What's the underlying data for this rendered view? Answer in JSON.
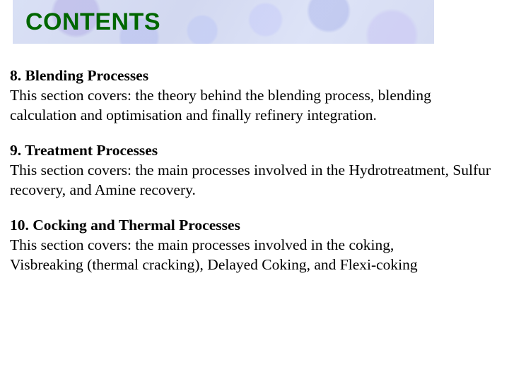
{
  "title": {
    "text": "CONTENTS",
    "font_family": "Arial",
    "font_size_pt": 26,
    "font_weight": 700,
    "color": "#006600",
    "band_background_colors": [
      "#d9e0f5",
      "#d2d8f0",
      "#dde3f7",
      "#d6dcf2"
    ]
  },
  "body": {
    "font_family": "Times New Roman",
    "font_size_pt": 16,
    "color": "#000000"
  },
  "sections": [
    {
      "heading": "8. Blending Processes",
      "description": "This section covers: the theory behind the blending process, blending calculation and optimisation and finally refinery integration."
    },
    {
      "heading": "9. Treatment Processes",
      "description": "This section covers: the main processes involved in the Hydrotreatment, Sulfur recovery, and Amine recovery."
    },
    {
      "heading": "10. Cocking  and Thermal Processes",
      "description": "This section covers: the main processes involved in the coking,\n Visbreaking (thermal cracking), Delayed Coking,  and Flexi-coking"
    }
  ],
  "background_color": "#ffffff"
}
